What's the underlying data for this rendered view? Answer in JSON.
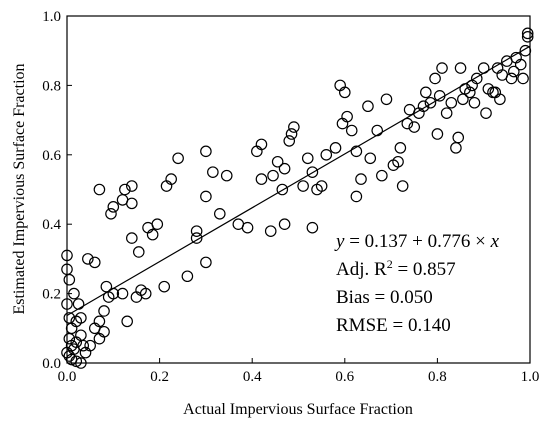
{
  "chart_data": {
    "type": "scatter",
    "xlabel": "Actual Impervious Surface Fraction",
    "ylabel": "Estimated Impervious Surface Fraction",
    "xlim": [
      0.0,
      1.0
    ],
    "ylim": [
      0.0,
      1.0
    ],
    "xticks": [
      "0.0",
      "0.2",
      "0.4",
      "0.6",
      "0.8",
      "1.0"
    ],
    "yticks": [
      "0.0",
      "0.2",
      "0.4",
      "0.6",
      "0.8",
      "1.0"
    ],
    "grid": false,
    "fit_line": {
      "intercept": 0.137,
      "slope": 0.776
    },
    "annotations": {
      "equation": {
        "lhs": "y",
        "rest": " = 0.137 + 0.776 × ",
        "var": "x"
      },
      "adj_r2": {
        "prefix": "Adj. R",
        "sup": "2",
        "suffix": " = 0.857"
      },
      "bias": "Bias = 0.050",
      "rmse": "RMSE = 0.140"
    },
    "points": [
      [
        0.0,
        0.31
      ],
      [
        0.0,
        0.27
      ],
      [
        0.005,
        0.24
      ],
      [
        0.0,
        0.17
      ],
      [
        0.005,
        0.13
      ],
      [
        0.01,
        0.1
      ],
      [
        0.005,
        0.07
      ],
      [
        0.01,
        0.05
      ],
      [
        0.0,
        0.03
      ],
      [
        0.005,
        0.02
      ],
      [
        0.01,
        0.01
      ],
      [
        0.02,
        0.005
      ],
      [
        0.03,
        0.0
      ],
      [
        0.015,
        0.04
      ],
      [
        0.02,
        0.06
      ],
      [
        0.03,
        0.08
      ],
      [
        0.035,
        0.05
      ],
      [
        0.02,
        0.12
      ],
      [
        0.03,
        0.13
      ],
      [
        0.025,
        0.17
      ],
      [
        0.015,
        0.2
      ],
      [
        0.04,
        0.03
      ],
      [
        0.05,
        0.05
      ],
      [
        0.06,
        0.1
      ],
      [
        0.07,
        0.07
      ],
      [
        0.08,
        0.09
      ],
      [
        0.07,
        0.12
      ],
      [
        0.08,
        0.15
      ],
      [
        0.09,
        0.19
      ],
      [
        0.1,
        0.2
      ],
      [
        0.045,
        0.3
      ],
      [
        0.06,
        0.29
      ],
      [
        0.085,
        0.22
      ],
      [
        0.07,
        0.5
      ],
      [
        0.095,
        0.43
      ],
      [
        0.1,
        0.45
      ],
      [
        0.125,
        0.5
      ],
      [
        0.14,
        0.51
      ],
      [
        0.12,
        0.47
      ],
      [
        0.14,
        0.46
      ],
      [
        0.14,
        0.36
      ],
      [
        0.155,
        0.32
      ],
      [
        0.12,
        0.2
      ],
      [
        0.13,
        0.12
      ],
      [
        0.15,
        0.19
      ],
      [
        0.16,
        0.21
      ],
      [
        0.17,
        0.2
      ],
      [
        0.175,
        0.39
      ],
      [
        0.185,
        0.37
      ],
      [
        0.195,
        0.4
      ],
      [
        0.21,
        0.22
      ],
      [
        0.215,
        0.51
      ],
      [
        0.225,
        0.53
      ],
      [
        0.24,
        0.59
      ],
      [
        0.26,
        0.25
      ],
      [
        0.28,
        0.36
      ],
      [
        0.28,
        0.38
      ],
      [
        0.3,
        0.29
      ],
      [
        0.3,
        0.48
      ],
      [
        0.3,
        0.61
      ],
      [
        0.315,
        0.55
      ],
      [
        0.33,
        0.43
      ],
      [
        0.345,
        0.54
      ],
      [
        0.37,
        0.4
      ],
      [
        0.39,
        0.39
      ],
      [
        0.41,
        0.61
      ],
      [
        0.42,
        0.63
      ],
      [
        0.42,
        0.53
      ],
      [
        0.44,
        0.38
      ],
      [
        0.445,
        0.54
      ],
      [
        0.455,
        0.58
      ],
      [
        0.47,
        0.4
      ],
      [
        0.465,
        0.5
      ],
      [
        0.47,
        0.56
      ],
      [
        0.48,
        0.64
      ],
      [
        0.485,
        0.66
      ],
      [
        0.49,
        0.68
      ],
      [
        0.51,
        0.51
      ],
      [
        0.52,
        0.59
      ],
      [
        0.53,
        0.55
      ],
      [
        0.53,
        0.39
      ],
      [
        0.54,
        0.5
      ],
      [
        0.55,
        0.51
      ],
      [
        0.56,
        0.6
      ],
      [
        0.58,
        0.62
      ],
      [
        0.595,
        0.69
      ],
      [
        0.605,
        0.71
      ],
      [
        0.59,
        0.8
      ],
      [
        0.6,
        0.78
      ],
      [
        0.615,
        0.67
      ],
      [
        0.625,
        0.61
      ],
      [
        0.625,
        0.48
      ],
      [
        0.635,
        0.53
      ],
      [
        0.65,
        0.74
      ],
      [
        0.655,
        0.59
      ],
      [
        0.67,
        0.67
      ],
      [
        0.68,
        0.54
      ],
      [
        0.69,
        0.76
      ],
      [
        0.705,
        0.57
      ],
      [
        0.715,
        0.58
      ],
      [
        0.72,
        0.62
      ],
      [
        0.725,
        0.51
      ],
      [
        0.735,
        0.69
      ],
      [
        0.74,
        0.73
      ],
      [
        0.75,
        0.68
      ],
      [
        0.76,
        0.72
      ],
      [
        0.77,
        0.74
      ],
      [
        0.775,
        0.78
      ],
      [
        0.785,
        0.75
      ],
      [
        0.795,
        0.82
      ],
      [
        0.8,
        0.66
      ],
      [
        0.805,
        0.77
      ],
      [
        0.81,
        0.85
      ],
      [
        0.82,
        0.72
      ],
      [
        0.83,
        0.75
      ],
      [
        0.84,
        0.62
      ],
      [
        0.845,
        0.65
      ],
      [
        0.85,
        0.85
      ],
      [
        0.855,
        0.76
      ],
      [
        0.86,
        0.79
      ],
      [
        0.87,
        0.78
      ],
      [
        0.875,
        0.8
      ],
      [
        0.88,
        0.75
      ],
      [
        0.885,
        0.82
      ],
      [
        0.9,
        0.85
      ],
      [
        0.905,
        0.72
      ],
      [
        0.91,
        0.79
      ],
      [
        0.92,
        0.78
      ],
      [
        0.925,
        0.78
      ],
      [
        0.93,
        0.85
      ],
      [
        0.935,
        0.76
      ],
      [
        0.94,
        0.83
      ],
      [
        0.95,
        0.87
      ],
      [
        0.96,
        0.82
      ],
      [
        0.965,
        0.84
      ],
      [
        0.97,
        0.88
      ],
      [
        0.98,
        0.86
      ],
      [
        0.985,
        0.82
      ],
      [
        0.99,
        0.9
      ],
      [
        0.995,
        0.95
      ],
      [
        0.995,
        0.94
      ]
    ]
  }
}
